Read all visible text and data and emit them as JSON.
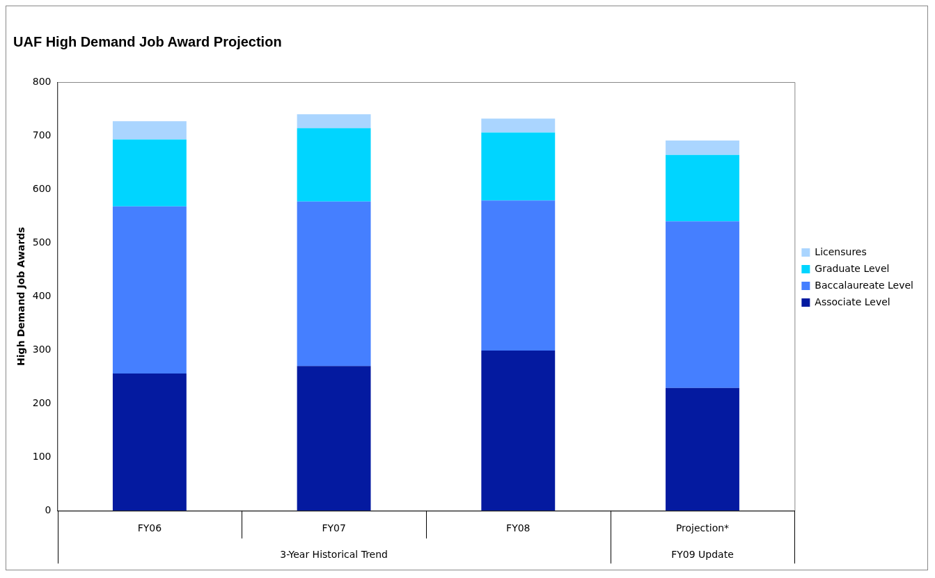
{
  "chart_data": {
    "type": "bar",
    "title": "UAF High Demand Job Award Projection",
    "ylabel": "High Demand Job Awards",
    "categories": [
      "FY06",
      "FY07",
      "FY08",
      "Projection*"
    ],
    "stacked": true,
    "series": [
      {
        "name": "Associate Level",
        "color": "#041aa0",
        "values": [
          256,
          270,
          299,
          229
        ]
      },
      {
        "name": "Baccalaureate Level",
        "color": "#457fff",
        "values": [
          312,
          307,
          280,
          311
        ]
      },
      {
        "name": "Graduate Level",
        "color": "#00d5ff",
        "values": [
          125,
          137,
          127,
          124
        ]
      },
      {
        "name": "Licensures",
        "color": "#aad5ff",
        "values": [
          34,
          26,
          26,
          27
        ]
      }
    ],
    "ylim": [
      0,
      800
    ],
    "yticks": [
      0,
      100,
      200,
      300,
      400,
      500,
      600,
      700,
      800
    ],
    "grid": false,
    "legend": "right",
    "annotations": [
      "3-Year Historical Trend",
      "FY09 Update"
    ]
  }
}
